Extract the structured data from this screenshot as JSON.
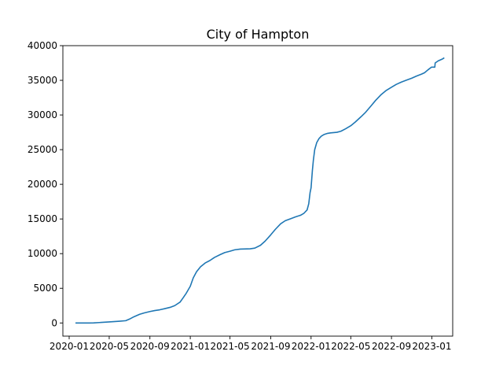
{
  "chart_data": {
    "type": "line",
    "title": "City of Hampton",
    "xlabel": "",
    "ylabel": "",
    "xlim": [
      "2019-12-13",
      "2023-03-05"
    ],
    "ylim": [
      -1900,
      40000
    ],
    "x_ticks": [
      "2020-01",
      "2020-05",
      "2020-09",
      "2021-01",
      "2021-05",
      "2021-09",
      "2022-01",
      "2022-05",
      "2022-09",
      "2023-01"
    ],
    "y_ticks": [
      0,
      5000,
      10000,
      15000,
      20000,
      25000,
      30000,
      35000,
      40000
    ],
    "y_tick_labels": [
      "0",
      "5000",
      "10000",
      "15000",
      "20000",
      "25000",
      "30000",
      "35000",
      "40000"
    ],
    "grid": false,
    "legend": "none",
    "series": [
      {
        "color": "#1f77b4",
        "points": [
          [
            "2020-01-22",
            0
          ],
          [
            "2020-03-01",
            0
          ],
          [
            "2020-03-15",
            5
          ],
          [
            "2020-04-01",
            60
          ],
          [
            "2020-05-01",
            150
          ],
          [
            "2020-06-01",
            250
          ],
          [
            "2020-06-20",
            330
          ],
          [
            "2020-07-01",
            550
          ],
          [
            "2020-07-15",
            900
          ],
          [
            "2020-08-01",
            1250
          ],
          [
            "2020-08-15",
            1450
          ],
          [
            "2020-09-01",
            1650
          ],
          [
            "2020-09-15",
            1780
          ],
          [
            "2020-10-01",
            1900
          ],
          [
            "2020-10-15",
            2050
          ],
          [
            "2020-11-01",
            2250
          ],
          [
            "2020-11-15",
            2500
          ],
          [
            "2020-12-01",
            3000
          ],
          [
            "2020-12-10",
            3600
          ],
          [
            "2020-12-20",
            4300
          ],
          [
            "2021-01-01",
            5300
          ],
          [
            "2021-01-10",
            6500
          ],
          [
            "2021-01-20",
            7400
          ],
          [
            "2021-02-01",
            8100
          ],
          [
            "2021-02-15",
            8650
          ],
          [
            "2021-03-01",
            9000
          ],
          [
            "2021-03-15",
            9450
          ],
          [
            "2021-04-01",
            9850
          ],
          [
            "2021-04-15",
            10150
          ],
          [
            "2021-05-01",
            10350
          ],
          [
            "2021-05-15",
            10550
          ],
          [
            "2021-06-01",
            10650
          ],
          [
            "2021-07-01",
            10700
          ],
          [
            "2021-07-15",
            10800
          ],
          [
            "2021-08-01",
            11200
          ],
          [
            "2021-08-15",
            11800
          ],
          [
            "2021-09-01",
            12700
          ],
          [
            "2021-09-15",
            13500
          ],
          [
            "2021-10-01",
            14300
          ],
          [
            "2021-10-15",
            14750
          ],
          [
            "2021-11-01",
            15050
          ],
          [
            "2021-11-15",
            15300
          ],
          [
            "2021-12-01",
            15550
          ],
          [
            "2021-12-10",
            15800
          ],
          [
            "2021-12-20",
            16300
          ],
          [
            "2021-12-25",
            17200
          ],
          [
            "2021-12-29",
            18800
          ],
          [
            "2022-01-01",
            19500
          ],
          [
            "2022-01-05",
            22000
          ],
          [
            "2022-01-08",
            23500
          ],
          [
            "2022-01-12",
            25000
          ],
          [
            "2022-01-18",
            26000
          ],
          [
            "2022-01-25",
            26600
          ],
          [
            "2022-02-01",
            26950
          ],
          [
            "2022-02-10",
            27200
          ],
          [
            "2022-02-20",
            27350
          ],
          [
            "2022-03-01",
            27420
          ],
          [
            "2022-03-20",
            27500
          ],
          [
            "2022-04-01",
            27650
          ],
          [
            "2022-04-15",
            28000
          ],
          [
            "2022-05-01",
            28450
          ],
          [
            "2022-05-15",
            29000
          ],
          [
            "2022-06-01",
            29750
          ],
          [
            "2022-06-15",
            30400
          ],
          [
            "2022-07-01",
            31300
          ],
          [
            "2022-07-15",
            32100
          ],
          [
            "2022-08-01",
            32950
          ],
          [
            "2022-08-15",
            33500
          ],
          [
            "2022-09-01",
            34000
          ],
          [
            "2022-09-15",
            34400
          ],
          [
            "2022-10-01",
            34750
          ],
          [
            "2022-10-15",
            35000
          ],
          [
            "2022-11-01",
            35300
          ],
          [
            "2022-11-15",
            35600
          ],
          [
            "2022-12-01",
            35900
          ],
          [
            "2022-12-10",
            36100
          ],
          [
            "2022-12-20",
            36500
          ],
          [
            "2022-12-31",
            36900
          ],
          [
            "2023-01-10",
            36900
          ],
          [
            "2023-01-11",
            37500
          ],
          [
            "2023-01-20",
            37800
          ],
          [
            "2023-02-01",
            38050
          ],
          [
            "2023-02-06",
            38200
          ]
        ]
      }
    ]
  }
}
